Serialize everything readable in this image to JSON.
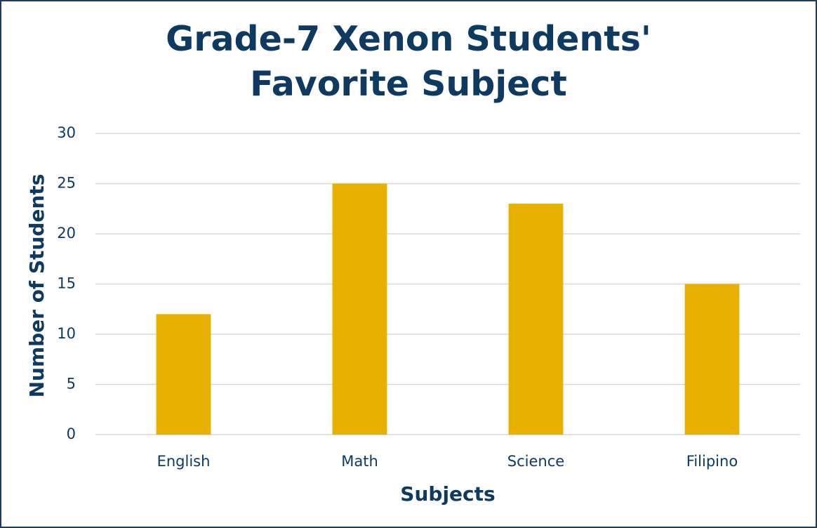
{
  "chart_data": {
    "type": "bar",
    "title": "Grade-7 Xenon Students' Favorite Subject",
    "x_label": "Subjects",
    "y_label": "Number of Students",
    "categories": [
      "English",
      "Math",
      "Science",
      "Filipino"
    ],
    "values": [
      12,
      25,
      23,
      15
    ],
    "color": "#e8b100",
    "ylim": [
      0,
      30
    ],
    "yticks": [
      0,
      5,
      10,
      15,
      20,
      25,
      30
    ],
    "grid": true
  }
}
